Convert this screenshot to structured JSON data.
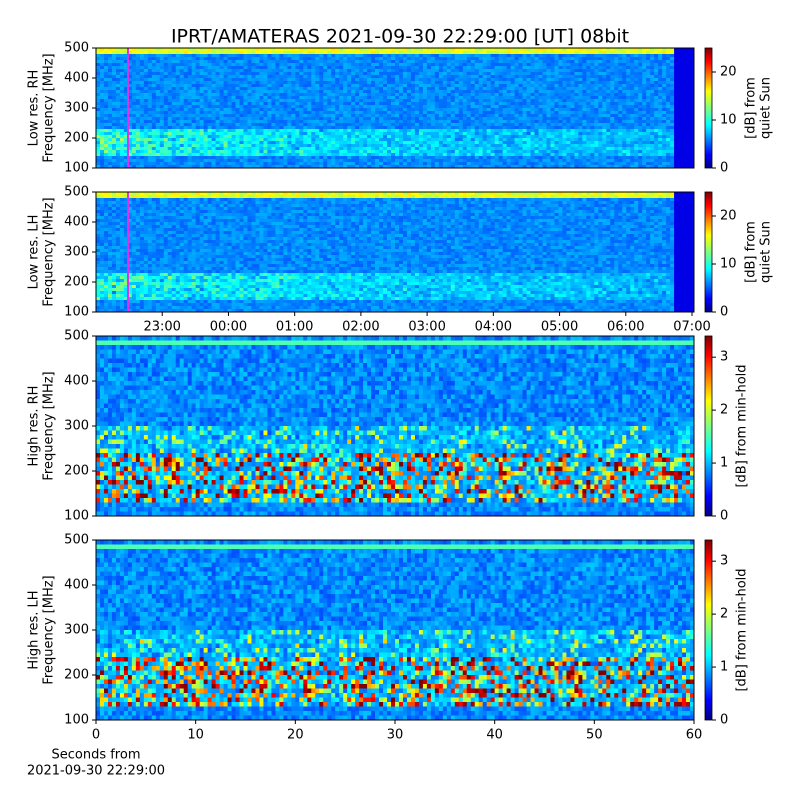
{
  "title": "IPRT/AMATERAS 2021-09-30 22:29:00 [UT]   08bit",
  "chart_data": [
    {
      "type": "spectrogram",
      "ylabel": [
        "Low res. RH",
        "Frequency [MHz]"
      ],
      "xlim": [
        22,
        31.03
      ],
      "ylim": [
        100,
        500
      ],
      "yticks": [
        100,
        200,
        300,
        400,
        500
      ],
      "marker": {
        "x": 22.483,
        "color": "#e62ee6"
      },
      "colorbar": {
        "colormap": "jet",
        "clim": [
          0,
          25
        ],
        "ticks": [
          0,
          10,
          20
        ],
        "label": [
          "[dB] from",
          "quiet Sun"
        ]
      }
    },
    {
      "type": "spectrogram",
      "ylabel": [
        "Low res. LH",
        "Frequency [MHz]"
      ],
      "xlim": [
        22,
        31.03
      ],
      "ylim": [
        100,
        500
      ],
      "yticks": [
        100,
        200,
        300,
        400,
        500
      ],
      "xticks": [
        {
          "value": 23,
          "label": "23:00"
        },
        {
          "value": 24,
          "label": "00:00"
        },
        {
          "value": 25,
          "label": "01:00"
        },
        {
          "value": 26,
          "label": "02:00"
        },
        {
          "value": 27,
          "label": "03:00"
        },
        {
          "value": 28,
          "label": "04:00"
        },
        {
          "value": 29,
          "label": "05:00"
        },
        {
          "value": 30,
          "label": "06:00"
        },
        {
          "value": 31,
          "label": "07:00"
        }
      ],
      "marker": {
        "x": 22.483,
        "color": "#e62ee6"
      },
      "colorbar": {
        "colormap": "jet",
        "clim": [
          0,
          25
        ],
        "ticks": [
          0,
          10,
          20
        ],
        "label": [
          "[dB] from",
          "quiet Sun"
        ]
      }
    },
    {
      "type": "spectrogram",
      "ylabel": [
        "High res. RH",
        "Frequency [MHz]"
      ],
      "xlim": [
        0,
        60
      ],
      "ylim": [
        100,
        500
      ],
      "yticks": [
        100,
        200,
        300,
        400,
        500
      ],
      "colorbar": {
        "colormap": "jet",
        "clim": [
          0,
          3.4
        ],
        "ticks": [
          0,
          1,
          2,
          3
        ],
        "label": [
          "[dB] from min-hold"
        ]
      }
    },
    {
      "type": "spectrogram",
      "ylabel": [
        "High res. LH",
        "Frequency [MHz]"
      ],
      "xlim": [
        0,
        60
      ],
      "ylim": [
        100,
        500
      ],
      "yticks": [
        100,
        200,
        300,
        400,
        500
      ],
      "xticks": [
        0,
        10,
        20,
        30,
        40,
        50,
        60
      ],
      "xlabel": [
        "Seconds from",
        "2021-09-30 22:29:00"
      ],
      "colorbar": {
        "colormap": "jet",
        "clim": [
          0,
          3.4
        ],
        "ticks": [
          0,
          1,
          2,
          3
        ],
        "label": [
          "[dB] from min-hold"
        ]
      }
    }
  ]
}
